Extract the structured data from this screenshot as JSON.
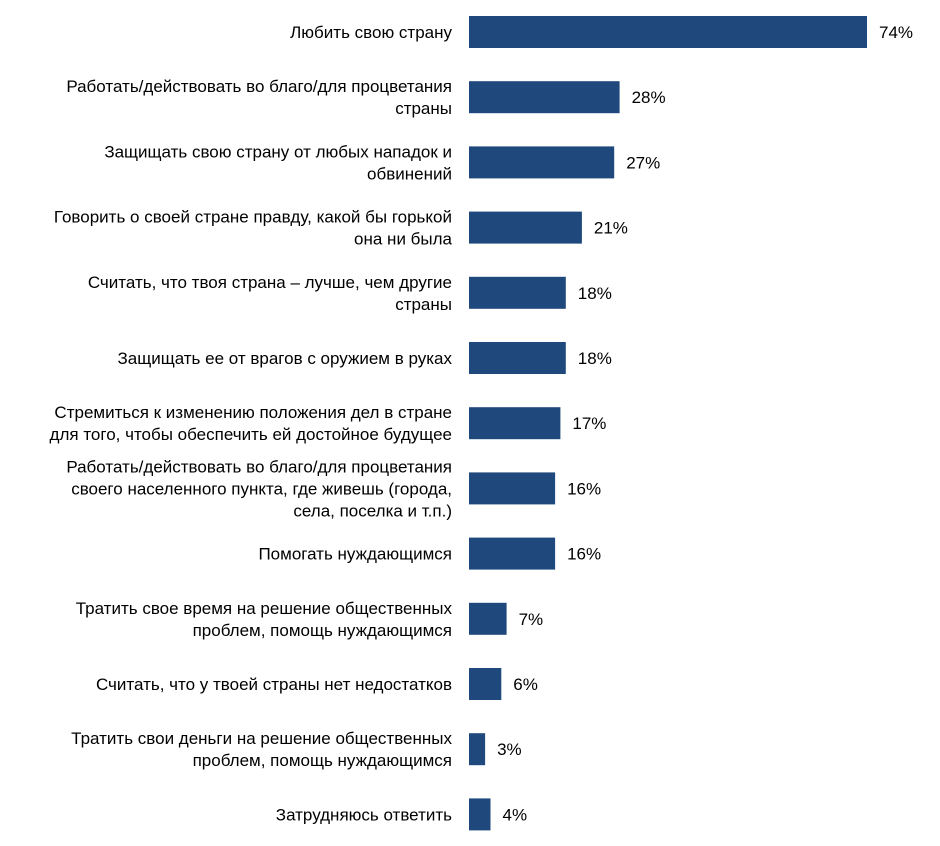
{
  "chart_data": {
    "type": "bar",
    "orientation": "horizontal",
    "title": "",
    "xlabel": "",
    "ylabel": "",
    "xlim": [
      0,
      74
    ],
    "grid": false,
    "legend": "none",
    "value_suffix": "%",
    "bar_color": "#1F497D",
    "categories": [
      [
        "Любить свою страну"
      ],
      [
        "Работать/действовать во благо/для процветания",
        "страны"
      ],
      [
        "Защищать  свою страну от любых нападок и",
        "обвинений"
      ],
      [
        "Говорить о своей стране правду, какой бы горькой",
        "она ни была"
      ],
      [
        "Считать, что твоя страна – лучше, чем другие",
        "страны"
      ],
      [
        "Защищать  ее от врагов с оружием в руках"
      ],
      [
        "Стремиться к изменению положения дел в стране",
        "для того, чтобы обеспечить ей достойное будущее"
      ],
      [
        "Работать/действовать во благо/для процветания",
        "своего населенного пункта,  где живешь (города,",
        "села, поселка и т.п.)"
      ],
      [
        "Помогать нуждающимся"
      ],
      [
        "Тратить свое время на решение общественных",
        "проблем, помощь нуждающимся"
      ],
      [
        "Считать, что у твоей страны нет недостатков"
      ],
      [
        "Тратить свои деньги на решение общественных",
        "проблем, помощь нуждающимся"
      ],
      [
        "Затрудняюсь ответить"
      ]
    ],
    "values": [
      74,
      28,
      27,
      21,
      18,
      18,
      17,
      16,
      16,
      7,
      6,
      3,
      4
    ]
  }
}
